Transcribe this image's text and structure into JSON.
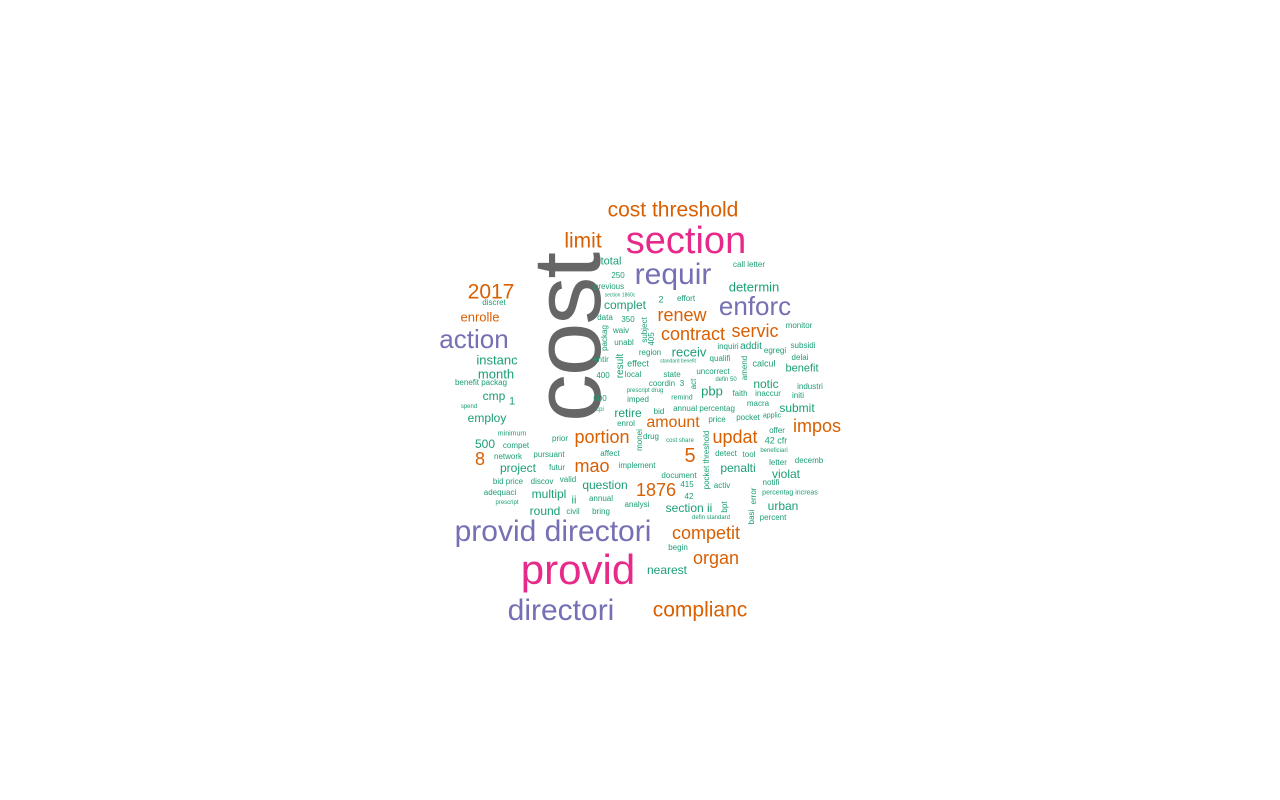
{
  "palette": {
    "teal": "#1b9e77",
    "orange": "#d95f02",
    "purple": "#7570b3",
    "pink": "#e7298a",
    "gray": "#666666"
  },
  "words": [
    {
      "text": "cost",
      "color_group": "gray",
      "frequency_rank": 1,
      "rotated": true
    },
    {
      "text": "section",
      "color_group": "pink",
      "frequency_rank": 2
    },
    {
      "text": "provid",
      "color_group": "pink",
      "frequency_rank": 2
    },
    {
      "text": "provid directori",
      "color_group": "purple",
      "frequency_rank": 3
    },
    {
      "text": "requir",
      "color_group": "purple",
      "frequency_rank": 3
    },
    {
      "text": "directori",
      "color_group": "purple",
      "frequency_rank": 3
    },
    {
      "text": "action",
      "color_group": "purple",
      "frequency_rank": 3
    },
    {
      "text": "enforc",
      "color_group": "purple",
      "frequency_rank": 3
    },
    {
      "text": "cost threshold",
      "color_group": "orange",
      "frequency_rank": 4
    },
    {
      "text": "limit",
      "color_group": "orange",
      "frequency_rank": 4
    },
    {
      "text": "2017",
      "color_group": "orange",
      "frequency_rank": 4
    },
    {
      "text": "complianc",
      "color_group": "orange",
      "frequency_rank": 4
    },
    {
      "text": "contract",
      "color_group": "orange",
      "frequency_rank": 4
    },
    {
      "text": "renew",
      "color_group": "orange",
      "frequency_rank": 4
    },
    {
      "text": "servic",
      "color_group": "orange",
      "frequency_rank": 4
    },
    {
      "text": "updat",
      "color_group": "orange",
      "frequency_rank": 4
    },
    {
      "text": "portion",
      "color_group": "orange",
      "frequency_rank": 4
    },
    {
      "text": "impos",
      "color_group": "orange",
      "frequency_rank": 4
    },
    {
      "text": "amount",
      "color_group": "orange",
      "frequency_rank": 4
    },
    {
      "text": "mao",
      "color_group": "orange",
      "frequency_rank": 4
    },
    {
      "text": "5",
      "color_group": "orange",
      "frequency_rank": 4
    },
    {
      "text": "8",
      "color_group": "orange",
      "frequency_rank": 4
    },
    {
      "text": "1876",
      "color_group": "orange",
      "frequency_rank": 4
    },
    {
      "text": "competit",
      "color_group": "orange",
      "frequency_rank": 4
    },
    {
      "text": "organ",
      "color_group": "orange",
      "frequency_rank": 4
    },
    {
      "text": "enrolle",
      "color_group": "orange",
      "frequency_rank": 4
    },
    {
      "text": "total",
      "color_group": "teal",
      "frequency_rank": 5
    },
    {
      "text": "call letter",
      "color_group": "teal",
      "frequency_rank": 6
    },
    {
      "text": "250",
      "color_group": "teal",
      "frequency_rank": 6
    },
    {
      "text": "previous",
      "color_group": "teal",
      "frequency_rank": 6
    },
    {
      "text": "section 1860c",
      "color_group": "teal",
      "frequency_rank": 7
    },
    {
      "text": "2",
      "color_group": "teal",
      "frequency_rank": 6
    },
    {
      "text": "effort",
      "color_group": "teal",
      "frequency_rank": 6
    },
    {
      "text": "determin",
      "color_group": "teal",
      "frequency_rank": 5
    },
    {
      "text": "discret",
      "color_group": "teal",
      "frequency_rank": 6
    },
    {
      "text": "complet",
      "color_group": "teal",
      "frequency_rank": 5
    },
    {
      "text": "data",
      "color_group": "teal",
      "frequency_rank": 6
    },
    {
      "text": "350",
      "color_group": "teal",
      "frequency_rank": 6
    },
    {
      "text": "packag",
      "color_group": "teal",
      "frequency_rank": 6,
      "rotated": true
    },
    {
      "text": "subject",
      "color_group": "teal",
      "frequency_rank": 6,
      "rotated": true
    },
    {
      "text": "monitor",
      "color_group": "teal",
      "frequency_rank": 6
    },
    {
      "text": "waiv",
      "color_group": "teal",
      "frequency_rank": 6
    },
    {
      "text": "unabl",
      "color_group": "teal",
      "frequency_rank": 6
    },
    {
      "text": "405",
      "color_group": "teal",
      "frequency_rank": 6,
      "rotated": true
    },
    {
      "text": "inquiri",
      "color_group": "teal",
      "frequency_rank": 6
    },
    {
      "text": "addit",
      "color_group": "teal",
      "frequency_rank": 5
    },
    {
      "text": "egregi",
      "color_group": "teal",
      "frequency_rank": 6
    },
    {
      "text": "subsidi",
      "color_group": "teal",
      "frequency_rank": 6
    },
    {
      "text": "instanc",
      "color_group": "teal",
      "frequency_rank": 5
    },
    {
      "text": "result",
      "color_group": "teal",
      "frequency_rank": 5,
      "rotated": true
    },
    {
      "text": "region",
      "color_group": "teal",
      "frequency_rank": 6
    },
    {
      "text": "receiv",
      "color_group": "teal",
      "frequency_rank": 5
    },
    {
      "text": "entir",
      "color_group": "teal",
      "frequency_rank": 6
    },
    {
      "text": "effect",
      "color_group": "teal",
      "frequency_rank": 6
    },
    {
      "text": "standard benefit",
      "color_group": "teal",
      "frequency_rank": 7
    },
    {
      "text": "qualifi",
      "color_group": "teal",
      "frequency_rank": 6
    },
    {
      "text": "amend",
      "color_group": "teal",
      "frequency_rank": 6,
      "rotated": true
    },
    {
      "text": "calcul",
      "color_group": "teal",
      "frequency_rank": 6
    },
    {
      "text": "delai",
      "color_group": "teal",
      "frequency_rank": 6
    },
    {
      "text": "month",
      "color_group": "teal",
      "frequency_rank": 5
    },
    {
      "text": "local",
      "color_group": "teal",
      "frequency_rank": 6
    },
    {
      "text": "state",
      "color_group": "teal",
      "frequency_rank": 6
    },
    {
      "text": "uncorrect",
      "color_group": "teal",
      "frequency_rank": 6
    },
    {
      "text": "benefit",
      "color_group": "teal",
      "frequency_rank": 5
    },
    {
      "text": "400",
      "color_group": "teal",
      "frequency_rank": 6
    },
    {
      "text": "defin 50",
      "color_group": "teal",
      "frequency_rank": 7
    },
    {
      "text": "benefit packag",
      "color_group": "teal",
      "frequency_rank": 6
    },
    {
      "text": "coordin",
      "color_group": "teal",
      "frequency_rank": 6
    },
    {
      "text": "3",
      "color_group": "teal",
      "frequency_rank": 6
    },
    {
      "text": "act",
      "color_group": "teal",
      "frequency_rank": 6,
      "rotated": true
    },
    {
      "text": "notic",
      "color_group": "teal",
      "frequency_rank": 5
    },
    {
      "text": "industri",
      "color_group": "teal",
      "frequency_rank": 6
    },
    {
      "text": "pbp",
      "color_group": "teal",
      "frequency_rank": 5
    },
    {
      "text": "prescript drug",
      "color_group": "teal",
      "frequency_rank": 7
    },
    {
      "text": "faith",
      "color_group": "teal",
      "frequency_rank": 6
    },
    {
      "text": "inaccur",
      "color_group": "teal",
      "frequency_rank": 6
    },
    {
      "text": "initi",
      "color_group": "teal",
      "frequency_rank": 6
    },
    {
      "text": "cmp",
      "color_group": "teal",
      "frequency_rank": 5
    },
    {
      "text": "1",
      "color_group": "teal",
      "frequency_rank": 5
    },
    {
      "text": "000",
      "color_group": "teal",
      "frequency_rank": 6
    },
    {
      "text": "imped",
      "color_group": "teal",
      "frequency_rank": 6
    },
    {
      "text": "remind",
      "color_group": "teal",
      "frequency_rank": 6
    },
    {
      "text": "macra",
      "color_group": "teal",
      "frequency_rank": 6
    },
    {
      "text": "spend",
      "color_group": "teal",
      "frequency_rank": 7
    },
    {
      "text": "cpi",
      "color_group": "teal",
      "frequency_rank": 7
    },
    {
      "text": "retire",
      "color_group": "teal",
      "frequency_rank": 5
    },
    {
      "text": "bid",
      "color_group": "teal",
      "frequency_rank": 6
    },
    {
      "text": "annual percentag",
      "color_group": "teal",
      "frequency_rank": 6
    },
    {
      "text": "pocket",
      "color_group": "teal",
      "frequency_rank": 6
    },
    {
      "text": "applic",
      "color_group": "teal",
      "frequency_rank": 7
    },
    {
      "text": "submit",
      "color_group": "teal",
      "frequency_rank": 5
    },
    {
      "text": "employ",
      "color_group": "teal",
      "frequency_rank": 5
    },
    {
      "text": "enrol",
      "color_group": "teal",
      "frequency_rank": 6
    },
    {
      "text": "price",
      "color_group": "teal",
      "frequency_rank": 6
    },
    {
      "text": "pocket threshold",
      "color_group": "teal",
      "frequency_rank": 6,
      "rotated": true
    },
    {
      "text": "offer",
      "color_group": "teal",
      "frequency_rank": 6
    },
    {
      "text": "minimum",
      "color_group": "teal",
      "frequency_rank": 6
    },
    {
      "text": "monei",
      "color_group": "teal",
      "frequency_rank": 6,
      "rotated": true
    },
    {
      "text": "prior",
      "color_group": "teal",
      "frequency_rank": 6
    },
    {
      "text": "drug",
      "color_group": "teal",
      "frequency_rank": 6
    },
    {
      "text": "cost share",
      "color_group": "teal",
      "frequency_rank": 7
    },
    {
      "text": "42 cfr",
      "color_group": "teal",
      "frequency_rank": 6
    },
    {
      "text": "500",
      "color_group": "teal",
      "frequency_rank": 5
    },
    {
      "text": "compet",
      "color_group": "teal",
      "frequency_rank": 6
    },
    {
      "text": "affect",
      "color_group": "teal",
      "frequency_rank": 6
    },
    {
      "text": "detect",
      "color_group": "teal",
      "frequency_rank": 6
    },
    {
      "text": "tool",
      "color_group": "teal",
      "frequency_rank": 6
    },
    {
      "text": "beneficiari",
      "color_group": "teal",
      "frequency_rank": 7
    },
    {
      "text": "network",
      "color_group": "teal",
      "frequency_rank": 6
    },
    {
      "text": "pursuant",
      "color_group": "teal",
      "frequency_rank": 6
    },
    {
      "text": "letter",
      "color_group": "teal",
      "frequency_rank": 6
    },
    {
      "text": "decemb",
      "color_group": "teal",
      "frequency_rank": 6
    },
    {
      "text": "project",
      "color_group": "teal",
      "frequency_rank": 5
    },
    {
      "text": "futur",
      "color_group": "teal",
      "frequency_rank": 6
    },
    {
      "text": "implement",
      "color_group": "teal",
      "frequency_rank": 6
    },
    {
      "text": "penalti",
      "color_group": "teal",
      "frequency_rank": 5
    },
    {
      "text": "violat",
      "color_group": "teal",
      "frequency_rank": 5
    },
    {
      "text": "bid price",
      "color_group": "teal",
      "frequency_rank": 6
    },
    {
      "text": "valid",
      "color_group": "teal",
      "frequency_rank": 6
    },
    {
      "text": "document",
      "color_group": "teal",
      "frequency_rank": 6
    },
    {
      "text": "notifi",
      "color_group": "teal",
      "frequency_rank": 6
    },
    {
      "text": "discov",
      "color_group": "teal",
      "frequency_rank": 6
    },
    {
      "text": "question",
      "color_group": "teal",
      "frequency_rank": 5
    },
    {
      "text": "415",
      "color_group": "teal",
      "frequency_rank": 6
    },
    {
      "text": "activ",
      "color_group": "teal",
      "frequency_rank": 6
    },
    {
      "text": "adequaci",
      "color_group": "teal",
      "frequency_rank": 6
    },
    {
      "text": "multipl",
      "color_group": "teal",
      "frequency_rank": 5
    },
    {
      "text": "42",
      "color_group": "teal",
      "frequency_rank": 6
    },
    {
      "text": "error",
      "color_group": "teal",
      "frequency_rank": 6,
      "rotated": true
    },
    {
      "text": "percentag increas",
      "color_group": "teal",
      "frequency_rank": 7
    },
    {
      "text": "annual",
      "color_group": "teal",
      "frequency_rank": 6
    },
    {
      "text": "ii",
      "color_group": "teal",
      "frequency_rank": 5
    },
    {
      "text": "prescript",
      "color_group": "teal",
      "frequency_rank": 7
    },
    {
      "text": "analysi",
      "color_group": "teal",
      "frequency_rank": 6
    },
    {
      "text": "section ii",
      "color_group": "teal",
      "frequency_rank": 5
    },
    {
      "text": "bpt",
      "color_group": "teal",
      "frequency_rank": 6,
      "rotated": true
    },
    {
      "text": "basi",
      "color_group": "teal",
      "frequency_rank": 6,
      "rotated": true
    },
    {
      "text": "urban",
      "color_group": "teal",
      "frequency_rank": 5
    },
    {
      "text": "round",
      "color_group": "teal",
      "frequency_rank": 5
    },
    {
      "text": "civil",
      "color_group": "teal",
      "frequency_rank": 6
    },
    {
      "text": "bring",
      "color_group": "teal",
      "frequency_rank": 6
    },
    {
      "text": "defin standard",
      "color_group": "teal",
      "frequency_rank": 7
    },
    {
      "text": "percent",
      "color_group": "teal",
      "frequency_rank": 6
    },
    {
      "text": "begin",
      "color_group": "teal",
      "frequency_rank": 6
    },
    {
      "text": "nearest",
      "color_group": "teal",
      "frequency_rank": 5
    }
  ]
}
